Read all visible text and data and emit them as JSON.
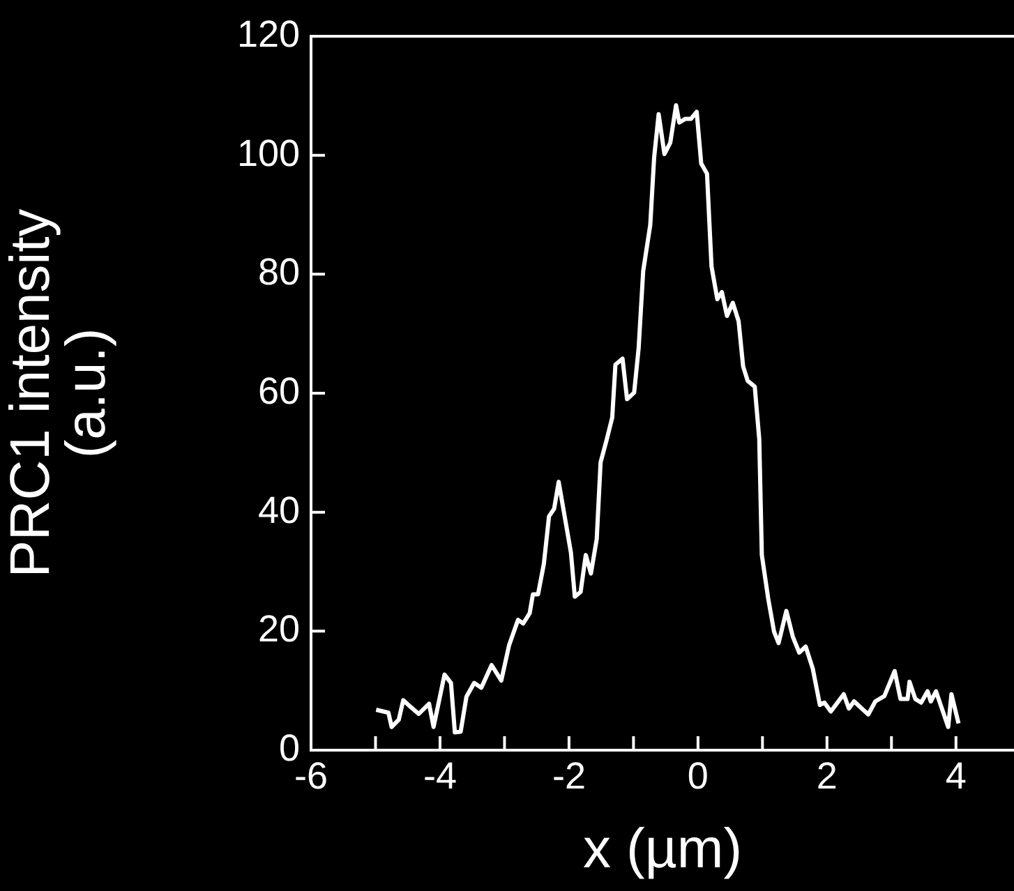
{
  "chart_data": {
    "type": "line",
    "xlabel": "x (µm)",
    "ylabel": "PRC1 intensity (a.u.)",
    "xlim": [
      -6,
      4.9
    ],
    "ylim": [
      0,
      120
    ],
    "xticks": [
      -6,
      {
        "value": -5,
        "label": null
      },
      -4,
      {
        "value": -3,
        "label": null
      },
      -2,
      {
        "value": -1,
        "label": null
      },
      0,
      {
        "value": 1,
        "label": null
      },
      2,
      {
        "value": 3,
        "label": null
      },
      4
    ],
    "yticks": [
      0,
      20,
      40,
      60,
      80,
      100,
      120
    ],
    "grid": false,
    "legend": false,
    "marker": "none",
    "line_style": "solid",
    "series": [
      {
        "color": "#ffffff",
        "x": [
          -4.99,
          -4.8,
          -4.75,
          -4.64,
          -4.57,
          -4.47,
          -4.33,
          -4.17,
          -4.1,
          -3.93,
          -3.83,
          -3.77,
          -3.68,
          -3.59,
          -3.47,
          -3.36,
          -3.2,
          -3.05,
          -2.93,
          -2.79,
          -2.71,
          -2.61,
          -2.56,
          -2.48,
          -2.39,
          -2.31,
          -2.23,
          -2.16,
          -1.97,
          -1.91,
          -1.82,
          -1.74,
          -1.66,
          -1.57,
          -1.51,
          -1.42,
          -1.33,
          -1.28,
          -1.17,
          -1.1,
          -0.99,
          -0.92,
          -0.85,
          -0.74,
          -0.68,
          -0.61,
          -0.52,
          -0.43,
          -0.34,
          -0.29,
          -0.2,
          -0.11,
          -0.02,
          0.05,
          0.14,
          0.21,
          0.3,
          0.37,
          0.45,
          0.54,
          0.63,
          0.7,
          0.77,
          0.88,
          0.95,
          0.99,
          1.09,
          1.18,
          1.25,
          1.37,
          1.47,
          1.57,
          1.67,
          1.78,
          1.89,
          1.96,
          2.06,
          2.26,
          2.34,
          2.42,
          2.64,
          2.75,
          2.89,
          3.05,
          3.14,
          3.25,
          3.28,
          3.37,
          3.46,
          3.56,
          3.61,
          3.69,
          3.88,
          3.93,
          4.04
        ],
        "values": [
          6.8,
          6.3,
          3.9,
          5.1,
          8.4,
          7.4,
          6.1,
          7.8,
          3.9,
          12.7,
          11.3,
          3,
          3.1,
          9,
          11.3,
          10.5,
          14.3,
          11.7,
          17.6,
          21.9,
          21.3,
          23,
          26.2,
          26.2,
          31.3,
          39.3,
          40.6,
          45.1,
          33.2,
          25.8,
          26.6,
          32.8,
          29.7,
          35.5,
          48.4,
          52,
          55.9,
          64.8,
          65.8,
          59,
          60.1,
          67.6,
          80.5,
          88.3,
          99.6,
          106.9,
          100.2,
          102.1,
          108.4,
          105.5,
          106.1,
          106.1,
          107.3,
          98.6,
          96.9,
          81.3,
          75.8,
          77,
          73,
          75.2,
          72.1,
          64.5,
          62.1,
          61.1,
          52.3,
          32.8,
          25.4,
          19.9,
          18,
          23.4,
          19.1,
          16.4,
          17.4,
          13.7,
          7.6,
          8,
          6.5,
          9.4,
          7,
          8.2,
          6,
          8.2,
          9.1,
          13.3,
          8.6,
          8.6,
          11.5,
          8.6,
          8,
          9.9,
          8.2,
          9.9,
          3.9,
          9.4,
          4.5
        ]
      }
    ]
  }
}
